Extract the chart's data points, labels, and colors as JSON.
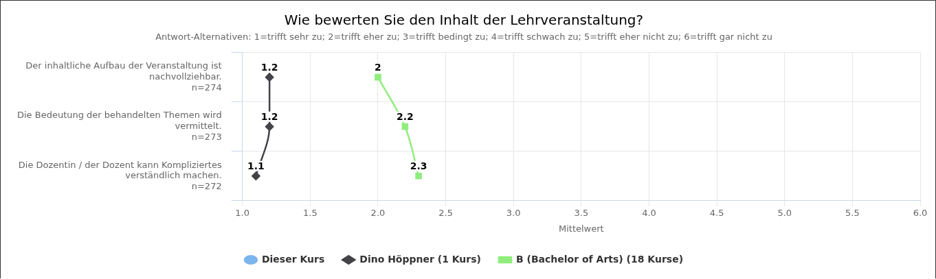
{
  "chart_data": {
    "type": "line",
    "orientation": "horizontal",
    "title": "Wie bewerten Sie den Inhalt der Lehrveranstaltung?",
    "subtitle": "Antwort-Alternativen: 1=trifft sehr zu; 2=trifft eher zu; 3=trifft bedingt zu; 4=trifft schwach zu; 5=trifft eher nicht zu; 6=trifft gar nicht zu",
    "xlabel": "Mittelwert",
    "categories": [
      "Der inhaltliche Aufbau der Veranstaltung ist\nnachvollziehbar.\nn=274",
      "Die Bedeutung der behandelten Themen wird\nvermittelt.\nn=273",
      "Die Dozentin / der Dozent kann Kompliziertes\nverständlich machen.\nn=272"
    ],
    "series": [
      {
        "name": "Dieser Kurs",
        "color": "#7cb5ec",
        "marker": "circle",
        "values": [
          null,
          null,
          null
        ]
      },
      {
        "name": "Dino Höppner (1 Kurs)",
        "color": "#434348",
        "marker": "diamond",
        "values": [
          1.2,
          1.2,
          1.1
        ]
      },
      {
        "name": "B (Bachelor of Arts) (18 Kurse)",
        "color": "#90ed7d",
        "marker": "square",
        "values": [
          2,
          2.2,
          2.3
        ]
      }
    ],
    "xlim": [
      1,
      6
    ],
    "xticks": [
      {
        "value": 1,
        "label": "1.0"
      },
      {
        "value": 1.5,
        "label": "1.5"
      },
      {
        "value": 2,
        "label": "2.0"
      },
      {
        "value": 2.5,
        "label": "2.5"
      },
      {
        "value": 3,
        "label": "3.0"
      },
      {
        "value": 3.5,
        "label": "3.5"
      },
      {
        "value": 4,
        "label": "4.0"
      },
      {
        "value": 4.5,
        "label": "4.5"
      },
      {
        "value": 5,
        "label": "5.0"
      },
      {
        "value": 5.5,
        "label": "5.5"
      },
      {
        "value": 6,
        "label": "6.0"
      }
    ],
    "grid": true,
    "legend": "bottom",
    "data_labels": true
  }
}
